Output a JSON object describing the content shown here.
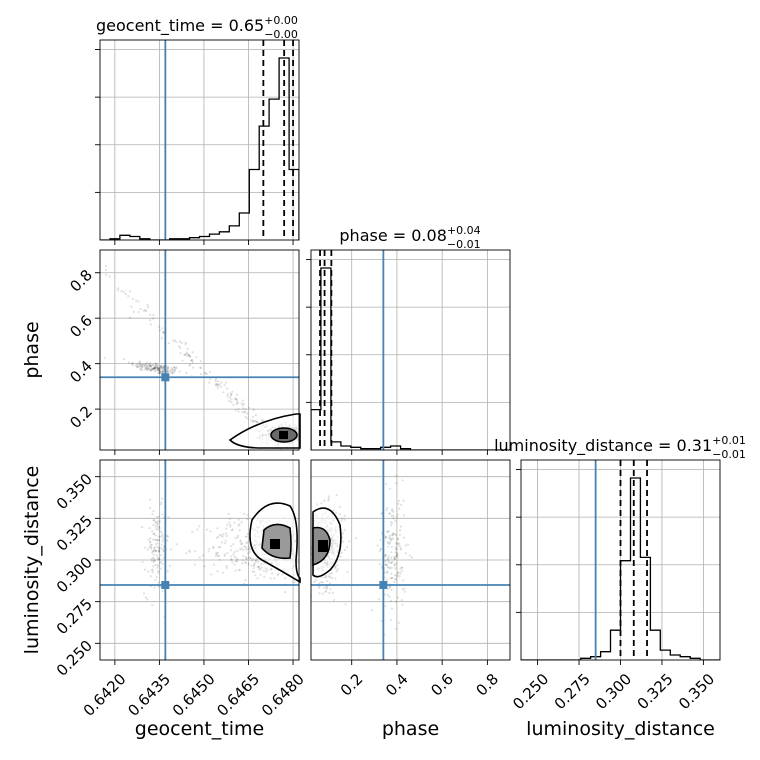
{
  "chart_data": {
    "type": "corner",
    "parameters": [
      {
        "name": "geocent_time",
        "axis_label": "geocent_time",
        "range": [
          0.6415,
          0.6482
        ],
        "ticks": [
          0.642,
          0.6435,
          0.645,
          0.6465,
          0.648
        ],
        "tick_labels": [
          "0.6420",
          "0.6435",
          "0.6450",
          "0.6465",
          "0.6480"
        ],
        "injection": 0.6437,
        "median": 0.6477,
        "lower_q": 0.647,
        "upper_q": 0.648,
        "title": {
          "main": "geocent_time = 0.65",
          "plus": "+0.00",
          "minus": "−0.00"
        },
        "hist": {
          "edges": [
            0.6415,
            0.641835,
            0.64217,
            0.642505,
            0.64284,
            0.643175,
            0.64351,
            0.643845,
            0.64418,
            0.644515,
            0.64485,
            0.645185,
            0.64552,
            0.645855,
            0.64619,
            0.646525,
            0.64686,
            0.647195,
            0.64753,
            0.647865,
            0.6482
          ],
          "counts": [
            0,
            1,
            4,
            3,
            1,
            0,
            0,
            1,
            1,
            2,
            3,
            5,
            7,
            12,
            23,
            60,
            97,
            120,
            155,
            60
          ]
        }
      },
      {
        "name": "phase",
        "axis_label": "phase",
        "range": [
          0.02,
          0.9
        ],
        "ticks": [
          0.2,
          0.4,
          0.6,
          0.8
        ],
        "tick_labels": [
          "0.2",
          "0.4",
          "0.6",
          "0.8"
        ],
        "injection": 0.34,
        "median": 0.08,
        "lower_q": 0.06,
        "upper_q": 0.11,
        "title": {
          "main": "phase = 0.08",
          "plus": "+0.04",
          "minus": "−0.01"
        },
        "hist": {
          "edges": [
            0.02,
            0.064,
            0.108,
            0.152,
            0.196,
            0.24,
            0.284,
            0.328,
            0.372,
            0.416,
            0.46,
            0.504,
            0.548,
            0.592,
            0.636,
            0.68,
            0.724,
            0.768,
            0.812,
            0.856,
            0.9
          ],
          "counts": [
            30,
            135,
            6,
            3,
            2,
            1,
            1,
            2,
            3,
            1,
            0,
            0,
            0,
            0,
            0,
            0,
            0,
            0,
            0,
            0
          ]
        }
      },
      {
        "name": "luminosity_distance",
        "axis_label": "luminosity_distance",
        "range": [
          0.24,
          0.36
        ],
        "ticks": [
          0.25,
          0.275,
          0.3,
          0.325,
          0.35
        ],
        "tick_labels": [
          "0.250",
          "0.275",
          "0.300",
          "0.325",
          "0.350"
        ],
        "injection": 0.285,
        "median": 0.308,
        "lower_q": 0.3,
        "upper_q": 0.316,
        "title": {
          "main": "luminosity_distance = 0.31",
          "plus": "+0.01",
          "minus": "−0.01"
        },
        "hist": {
          "edges": [
            0.24,
            0.246,
            0.252,
            0.258,
            0.264,
            0.27,
            0.276,
            0.282,
            0.288,
            0.294,
            0.3,
            0.306,
            0.312,
            0.318,
            0.324,
            0.33,
            0.336,
            0.342,
            0.348,
            0.354,
            0.36
          ],
          "counts": [
            0,
            0,
            0,
            0,
            0,
            0,
            1,
            2,
            5,
            18,
            60,
            110,
            62,
            18,
            6,
            3,
            2,
            1,
            0,
            0
          ]
        }
      }
    ],
    "injection_color": "#4682b4",
    "hist_color": "#000000",
    "grid": true,
    "density_clusters": [
      {
        "xi": 0,
        "yi": 1,
        "cx": 0.6434,
        "cy": 0.38,
        "sx": 0.0002,
        "sy": 0.03,
        "n": 160,
        "angle": -10
      },
      {
        "xi": 0,
        "yi": 1,
        "cx": 0.646,
        "cy": 0.24,
        "sx": 0.0013,
        "sy": 0.04,
        "n": 220,
        "angle": -45
      },
      {
        "xi": 0,
        "yi": 1,
        "cx": 0.6478,
        "cy": 0.09,
        "sx": 0.0004,
        "sy": 0.02,
        "n": 280,
        "angle": 0
      },
      {
        "xi": 0,
        "yi": 2,
        "cx": 0.6434,
        "cy": 0.305,
        "sx": 0.0002,
        "sy": 0.013,
        "n": 140,
        "angle": 0
      },
      {
        "xi": 0,
        "yi": 2,
        "cx": 0.6469,
        "cy": 0.307,
        "sx": 0.0009,
        "sy": 0.01,
        "n": 360,
        "angle": 0
      },
      {
        "xi": 1,
        "yi": 2,
        "cx": 0.09,
        "cy": 0.308,
        "sx": 0.04,
        "sy": 0.012,
        "n": 320,
        "angle": 0
      },
      {
        "xi": 1,
        "yi": 2,
        "cx": 0.38,
        "cy": 0.303,
        "sx": 0.03,
        "sy": 0.018,
        "n": 180,
        "angle": 0
      }
    ]
  }
}
